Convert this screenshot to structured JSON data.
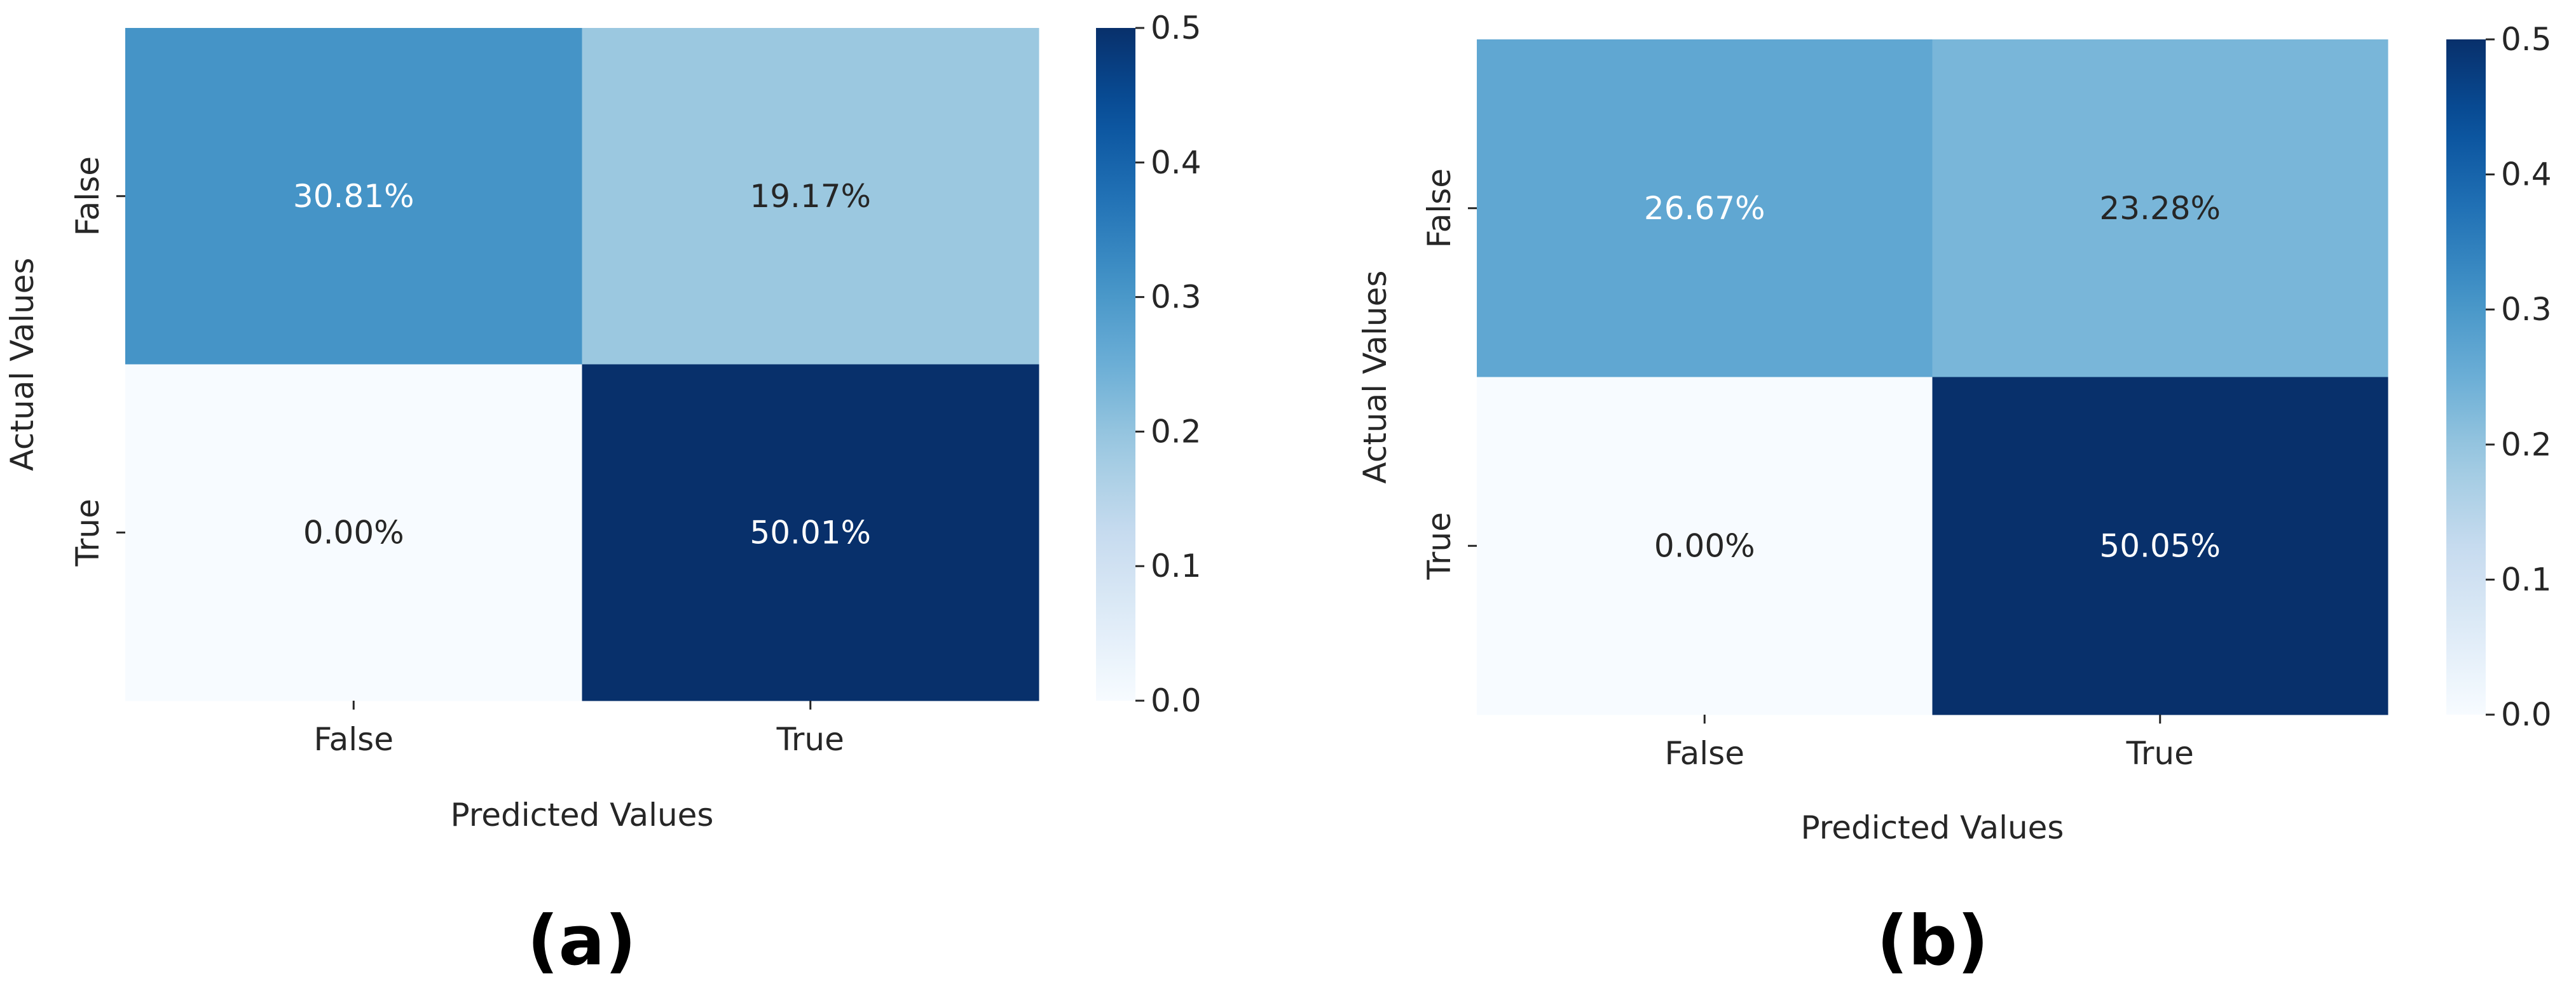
{
  "chart_data": [
    {
      "type": "heatmap",
      "panel_label": "(a)",
      "x_categories": [
        "False",
        "True"
      ],
      "y_categories": [
        "False",
        "True"
      ],
      "values": [
        [
          0.3081,
          0.1917
        ],
        [
          0.0,
          0.5001
        ]
      ],
      "annotations": [
        [
          "30.81%",
          "19.17%"
        ],
        [
          "0.00%",
          "50.01%"
        ]
      ],
      "xlabel": "Predicted Values",
      "ylabel": "Actual Values",
      "colormap": "Blues",
      "colorbar": {
        "min": 0.0,
        "max": 0.5,
        "ticks": [
          "0.0",
          "0.1",
          "0.2",
          "0.3",
          "0.4",
          "0.5"
        ]
      }
    },
    {
      "type": "heatmap",
      "panel_label": "(b)",
      "x_categories": [
        "False",
        "True"
      ],
      "y_categories": [
        "False",
        "True"
      ],
      "values": [
        [
          0.2667,
          0.2328
        ],
        [
          0.0,
          0.5005
        ]
      ],
      "annotations": [
        [
          "26.67%",
          "23.28%"
        ],
        [
          "0.00%",
          "50.05%"
        ]
      ],
      "xlabel": "Predicted Values",
      "ylabel": "Actual Values",
      "colormap": "Blues",
      "colorbar": {
        "min": 0.0,
        "max": 0.5,
        "ticks": [
          "0.0",
          "0.1",
          "0.2",
          "0.3",
          "0.4",
          "0.5"
        ]
      }
    }
  ]
}
